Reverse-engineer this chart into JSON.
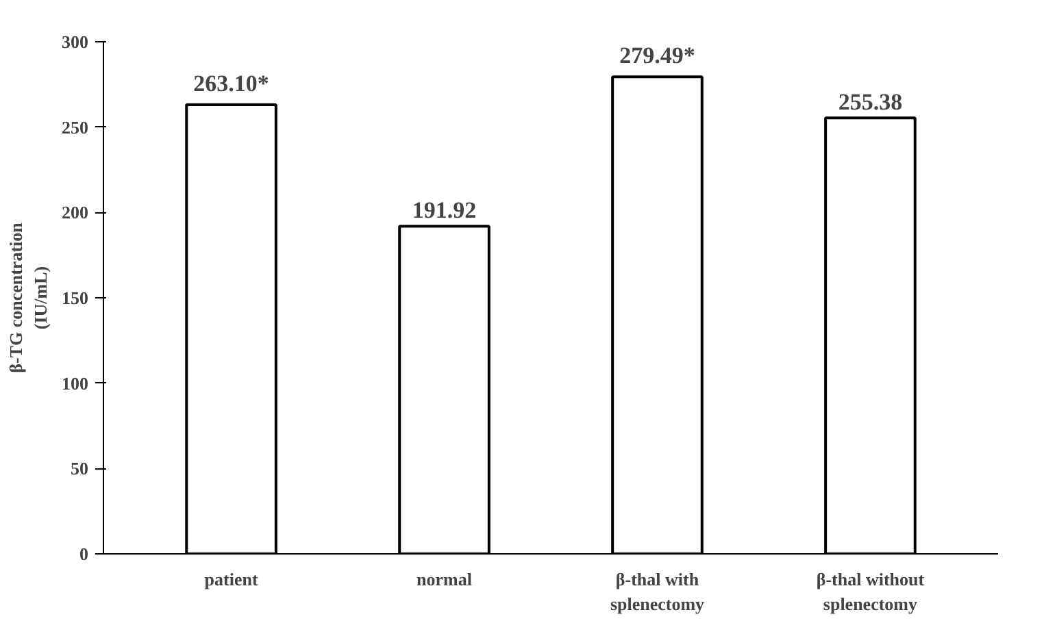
{
  "chart_data": {
    "type": "bar",
    "ylabel": "β-TG concentration\n(IU/mL)",
    "categories": [
      "patient",
      "normal",
      "β-thal with\nsplenectomy",
      "β-thal without\nsplenectomy"
    ],
    "values": [
      263.1,
      191.92,
      279.49,
      255.38
    ],
    "colors": [
      "#ffffff",
      "#ffffff",
      "#ffffff",
      "#ffffff"
    ],
    "value_labels": [
      "263.10*",
      "191.92",
      "279.49*",
      "255.38"
    ],
    "ylim": [
      0,
      300
    ],
    "yticks": [
      0,
      50,
      100,
      150,
      200,
      250,
      300
    ]
  }
}
